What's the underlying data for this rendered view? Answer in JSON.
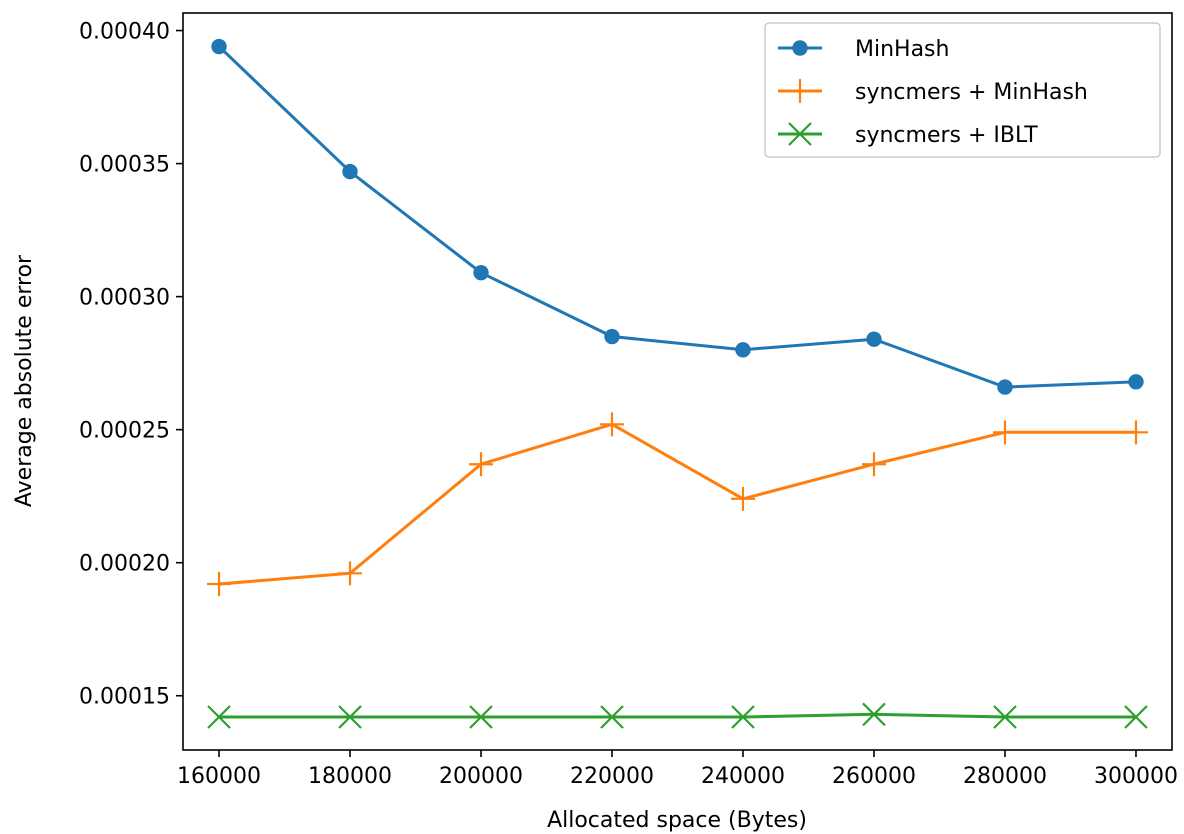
{
  "chart_data": {
    "type": "line",
    "title": "",
    "xlabel": "Allocated space (Bytes)",
    "ylabel": "Average absolute error",
    "x": [
      160000,
      180000,
      200000,
      220000,
      240000,
      260000,
      280000,
      300000
    ],
    "xticks": [
      "160000",
      "180000",
      "200000",
      "220000",
      "240000",
      "260000",
      "280000",
      "300000"
    ],
    "yticks": [
      "0.00015",
      "0.00020",
      "0.00025",
      "0.00030",
      "0.00035",
      "0.00040"
    ],
    "xlim": [
      154500,
      305500
    ],
    "ylim": [
      0.0001296,
      0.0004066
    ],
    "grid": false,
    "legend_position": "top-right",
    "series": [
      {
        "name": "MinHash",
        "color": "#1f77b4",
        "marker": "circle",
        "values": [
          0.000394,
          0.000347,
          0.000309,
          0.000285,
          0.00028,
          0.000284,
          0.000266,
          0.000268
        ]
      },
      {
        "name": "syncmers + MinHash",
        "color": "#ff7f0e",
        "marker": "plus",
        "values": [
          0.000192,
          0.000196,
          0.000237,
          0.000252,
          0.000224,
          0.000237,
          0.000249,
          0.000249
        ]
      },
      {
        "name": "syncmers + IBLT",
        "color": "#2ca02c",
        "marker": "x",
        "values": [
          0.000142,
          0.000142,
          0.000142,
          0.000142,
          0.000142,
          0.000143,
          0.000142,
          0.000142
        ]
      }
    ]
  }
}
